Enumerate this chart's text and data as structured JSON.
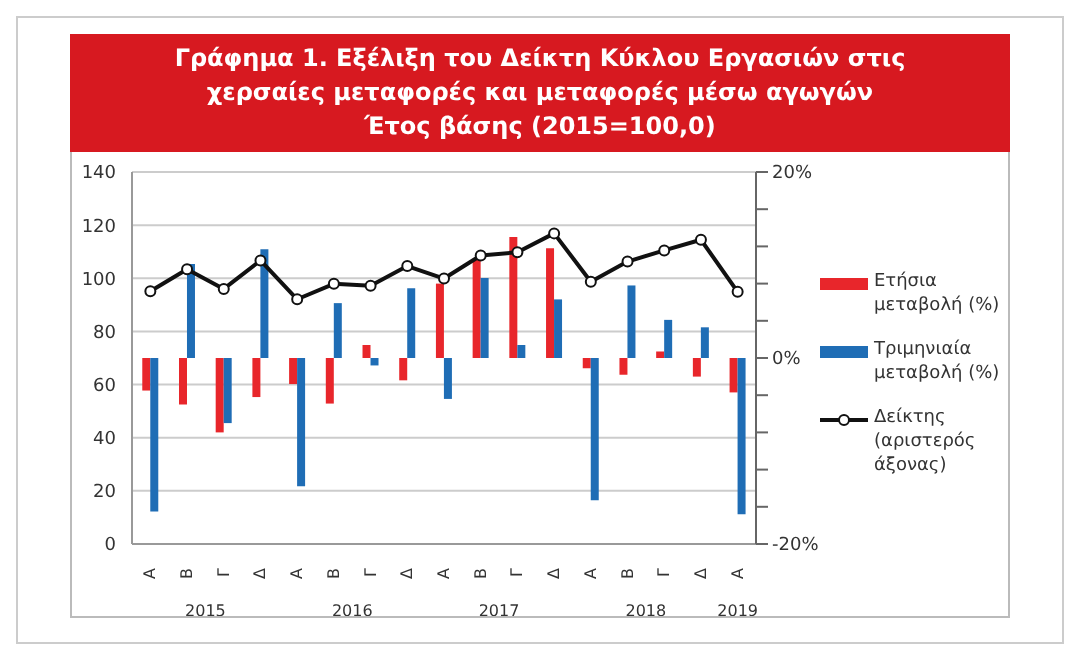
{
  "chart_data": {
    "type": "bar",
    "title": "Γράφημα 1. Εξέλιξη του Δείκτη Κύκλου Εργασιών στις χερσαίες μεταφορές και μεταφορές μέσω αγωγών",
    "subtitle": "Έτος βάσης (2015=100,0)",
    "categories": [
      "Α",
      "Β",
      "Γ",
      "Δ",
      "Α",
      "Β",
      "Γ",
      "Δ",
      "Α",
      "Β",
      "Γ",
      "Δ",
      "Α",
      "Β",
      "Γ",
      "Δ",
      "Α"
    ],
    "annotations": [
      "2015",
      "2016",
      "2017",
      "2018",
      "2019"
    ],
    "series": [
      {
        "name": "Ετήσια μεταβολή (%)",
        "axis": "y2",
        "color": "#e8262b",
        "values": [
          -3.5,
          -5.0,
          -8.0,
          -4.2,
          -2.8,
          -4.9,
          1.4,
          -2.4,
          8.0,
          10.7,
          13.0,
          11.8,
          -1.1,
          -1.8,
          0.7,
          -2.0,
          -3.7
        ]
      },
      {
        "name": "Τριμηνιαία μεταβολή (%)",
        "axis": "y2",
        "color": "#1f6db5",
        "values": [
          -16.5,
          10.1,
          -7.0,
          11.7,
          -13.8,
          5.9,
          -0.8,
          7.5,
          -4.4,
          8.6,
          1.4,
          6.3,
          -15.3,
          7.8,
          4.1,
          3.3,
          -16.8
        ]
      },
      {
        "name": "Δείκτης (αριστερός άξονας)",
        "type": "line",
        "color": "#111111",
        "values": [
          95.1,
          103.4,
          96.0,
          106.7,
          92.1,
          97.9,
          97.2,
          104.6,
          99.9,
          108.6,
          109.8,
          116.9,
          98.7,
          106.3,
          110.5,
          114.5,
          94.9
        ]
      }
    ],
    "ylim": [
      0,
      140
    ],
    "yticks": [
      0,
      20,
      40,
      60,
      80,
      100,
      120,
      140
    ],
    "y2lim": [
      -20,
      20
    ],
    "y2ticks": [
      {
        "value": 20,
        "label": "20%"
      },
      {
        "value": 16,
        "label": null
      },
      {
        "value": 12,
        "label": null
      },
      {
        "value": 8,
        "label": null
      },
      {
        "value": 4,
        "label": null
      },
      {
        "value": 0,
        "label": "0%"
      },
      {
        "value": -4,
        "label": null
      },
      {
        "value": -8,
        "label": null
      },
      {
        "value": -12,
        "label": null
      },
      {
        "value": -16,
        "label": null
      },
      {
        "value": -20,
        "label": "-20%"
      }
    ],
    "grid": "y",
    "legend": "right",
    "marker": "circle",
    "line_style": "solid"
  }
}
